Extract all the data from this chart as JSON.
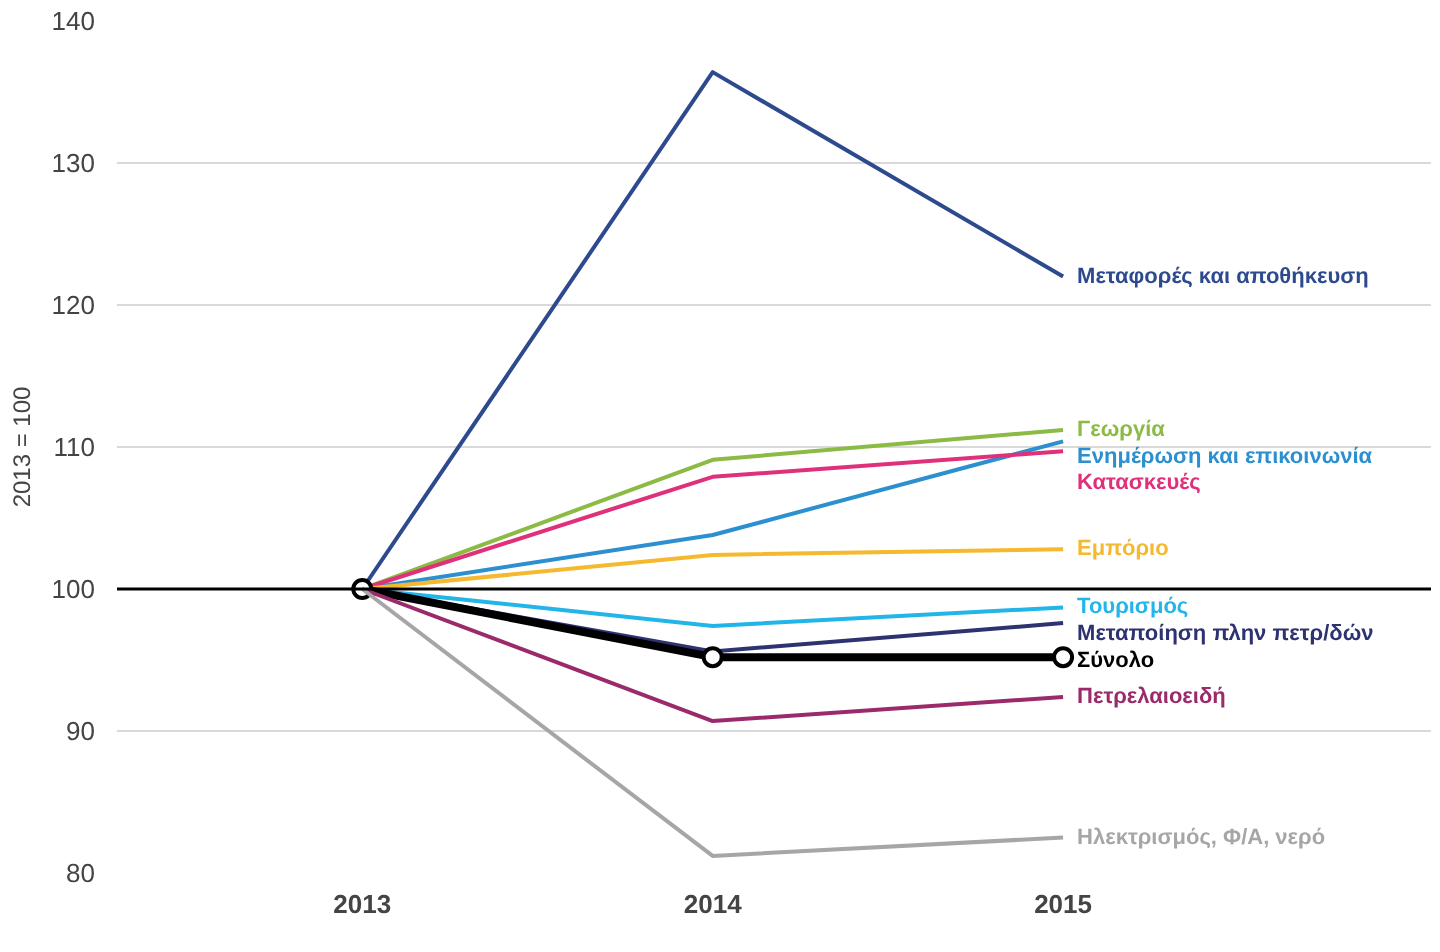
{
  "chart_data": {
    "type": "line",
    "ylabel": "2013 = 100",
    "categories": [
      "2013",
      "2014",
      "2015"
    ],
    "ylim": [
      80,
      140
    ],
    "yticks": [
      80,
      90,
      100,
      110,
      120,
      130,
      140
    ],
    "grid": "y",
    "ref_lines": [
      {
        "axis": "y",
        "value": 100,
        "color": "#000000"
      }
    ],
    "series": [
      {
        "name": "Μεταφορές και αποθήκευση",
        "color": "#2e4a8f",
        "values": [
          100,
          136.4,
          122
        ]
      },
      {
        "name": "Γεωργία",
        "color": "#8bbb45",
        "values": [
          100,
          109.1,
          111.2
        ]
      },
      {
        "name": "Ενημέρωση και επικοινωνία",
        "color": "#2b8fd0",
        "values": [
          100,
          103.8,
          110.4
        ]
      },
      {
        "name": "Κατασκευές",
        "color": "#e0307a",
        "values": [
          100,
          107.9,
          109.7
        ]
      },
      {
        "name": "Εμπόριο",
        "color": "#f5b82e",
        "values": [
          100,
          102.4,
          102.8
        ]
      },
      {
        "name": "Τουρισμός",
        "color": "#22b5e8",
        "values": [
          100,
          97.4,
          98.7
        ]
      },
      {
        "name": "Μεταποίηση πλην πετρ/δών",
        "color": "#2e3270",
        "values": [
          100,
          95.6,
          97.6
        ]
      },
      {
        "name": "Σύνολο",
        "color": "#000000",
        "values": [
          100,
          95.2,
          95.2
        ],
        "marker": "circle"
      },
      {
        "name": "Πετρελαιοειδή",
        "color": "#9b2a6b",
        "values": [
          100,
          90.7,
          92.4
        ]
      },
      {
        "name": "Ηλεκτρισμός, Φ/Α, νερό",
        "color": "#a6a6a6",
        "values": [
          100,
          81.2,
          82.5
        ]
      }
    ]
  }
}
